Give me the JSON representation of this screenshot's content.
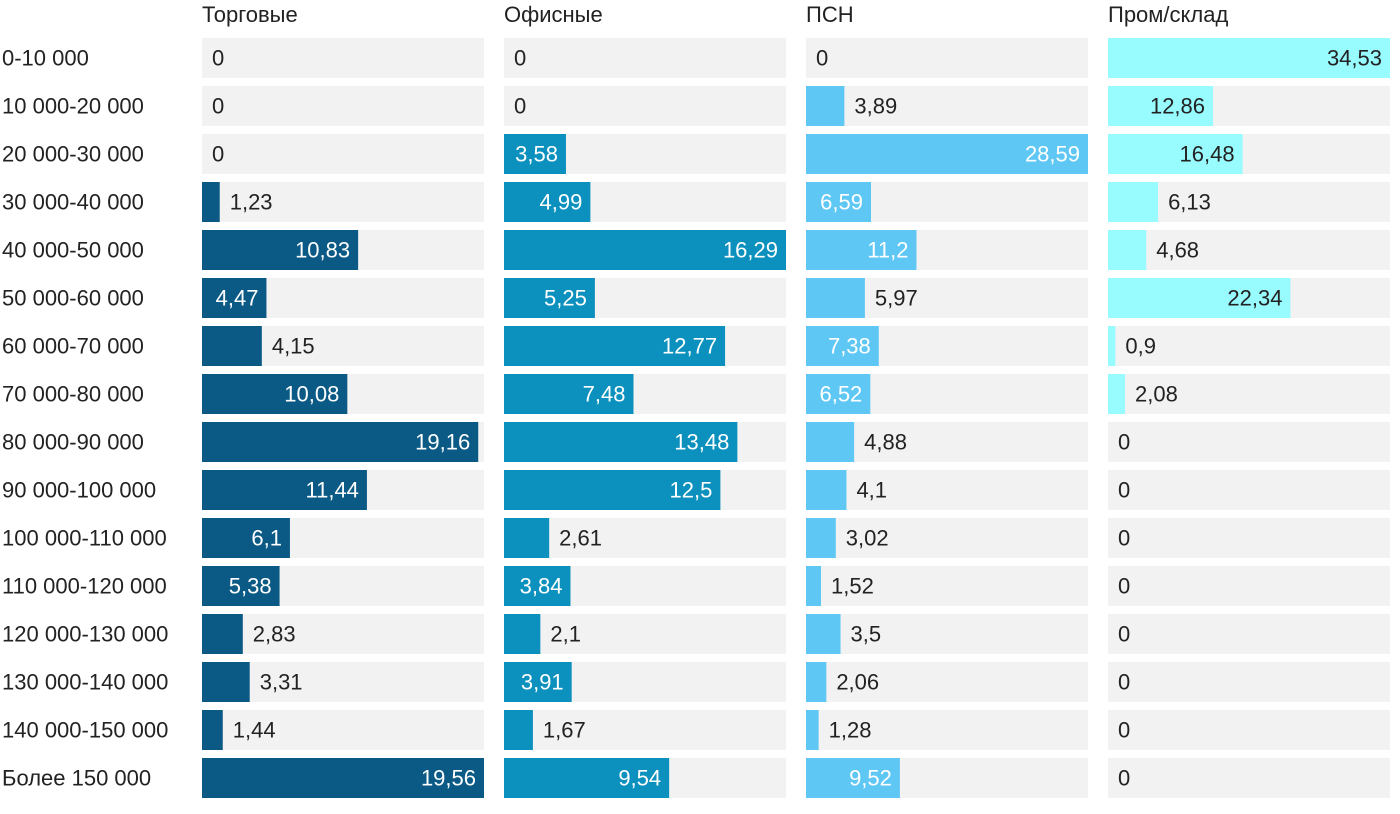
{
  "chart_data": {
    "type": "bar",
    "orientation": "horizontal",
    "layout": "small-multiples",
    "categories": [
      "0-10 000",
      "10 000-20 000",
      "20 000-30 000",
      "30 000-40 000",
      "40 000-50 000",
      "50 000-60 000",
      "60 000-70 000",
      "70 000-80 000",
      "80 000-90 000",
      "90 000-100 000",
      "100 000-110 000",
      "110 000-120 000",
      "120 000-130 000",
      "130 000-140 000",
      "140 000-150 000",
      "Более 150 000"
    ],
    "series": [
      {
        "name": "Торговые",
        "color": "#0b5a86",
        "xlim": [
          0,
          19.56
        ],
        "values": [
          0,
          0,
          0,
          1.23,
          10.83,
          4.47,
          4.15,
          10.08,
          19.16,
          11.44,
          6.1,
          5.38,
          2.83,
          3.31,
          1.44,
          19.56
        ],
        "labels": [
          "0",
          "0",
          "0",
          "1,23",
          "10,83",
          "4,47",
          "4,15",
          "10,08",
          "19,16",
          "11,44",
          "6,1",
          "5,38",
          "2,83",
          "3,31",
          "1,44",
          "19,56"
        ]
      },
      {
        "name": "Офисные",
        "color": "#0c90bd",
        "xlim": [
          0,
          16.29
        ],
        "values": [
          0,
          0,
          3.58,
          4.99,
          16.29,
          5.25,
          12.77,
          7.48,
          13.48,
          12.5,
          2.61,
          3.84,
          2.1,
          3.91,
          1.67,
          9.54
        ],
        "labels": [
          "0",
          "0",
          "3,58",
          "4,99",
          "16,29",
          "5,25",
          "12,77",
          "7,48",
          "13,48",
          "12,5",
          "2,61",
          "3,84",
          "2,1",
          "3,91",
          "1,67",
          "9,54"
        ]
      },
      {
        "name": "ПСН",
        "color": "#5fc7f4",
        "xlim": [
          0,
          28.59
        ],
        "values": [
          0,
          3.89,
          28.59,
          6.59,
          11.2,
          5.97,
          7.38,
          6.52,
          4.88,
          4.1,
          3.02,
          1.52,
          3.5,
          2.06,
          1.28,
          9.52
        ],
        "labels": [
          "0",
          "3,89",
          "28,59",
          "6,59",
          "11,2",
          "5,97",
          "7,38",
          "6,52",
          "4,88",
          "4,1",
          "3,02",
          "1,52",
          "3,5",
          "2,06",
          "1,28",
          "9,52"
        ]
      },
      {
        "name": "Пром/склад",
        "color": "#98fcfe",
        "xlim": [
          0,
          34.53
        ],
        "values": [
          34.53,
          12.86,
          16.48,
          6.13,
          4.68,
          22.34,
          0.9,
          2.08,
          0,
          0,
          0,
          0,
          0,
          0,
          0,
          0
        ],
        "labels": [
          "34,53",
          "12,86",
          "16,48",
          "6,13",
          "4,68",
          "22,34",
          "0,9",
          "2,08",
          "0",
          "0",
          "0",
          "0",
          "0",
          "0",
          "0",
          "0"
        ]
      }
    ],
    "title": "",
    "xlabel": "",
    "ylabel": "",
    "grid": false,
    "legend": "none",
    "background_track_color": "#f2f2f2",
    "inside_label_color": "#ffffff",
    "outside_label_color": "#222222"
  }
}
